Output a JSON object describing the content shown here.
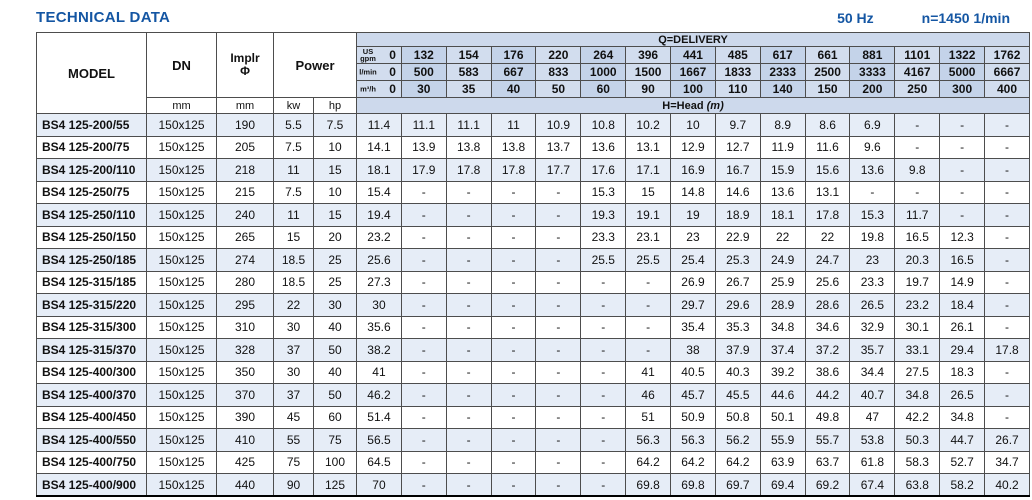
{
  "page": {
    "title": "TECHNICAL DATA",
    "frequency": "50 Hz",
    "speed": "n=1450 1/min"
  },
  "table": {
    "headers": {
      "model": "MODEL",
      "dn": "DN",
      "impeller_line1": "Implr",
      "impeller_line2": "Φ",
      "power": "Power",
      "dn_unit": "mm",
      "impeller_unit": "mm",
      "kw": "kw",
      "hp": "hp",
      "delivery_title": "Q=DELIVERY",
      "head_label": "H=Head",
      "head_unit": "(m)"
    },
    "delivery_units": [
      {
        "unit": "US gpm",
        "values": [
          "0",
          "132",
          "154",
          "176",
          "220",
          "264",
          "396",
          "441",
          "485",
          "617",
          "661",
          "881",
          "1101",
          "1322",
          "1762"
        ]
      },
      {
        "unit": "l/min",
        "values": [
          "0",
          "500",
          "583",
          "667",
          "833",
          "1000",
          "1500",
          "1667",
          "1833",
          "2333",
          "2500",
          "3333",
          "4167",
          "5000",
          "6667"
        ]
      },
      {
        "unit": "m³/h",
        "values": [
          "0",
          "30",
          "35",
          "40",
          "50",
          "60",
          "90",
          "100",
          "110",
          "140",
          "150",
          "200",
          "250",
          "300",
          "400"
        ]
      }
    ],
    "rows": [
      {
        "model": "BS4 125-200/55",
        "dn": "150x125",
        "impeller": "190",
        "kw": "5.5",
        "hp": "7.5",
        "head": [
          "11.4",
          "11.1",
          "11.1",
          "11",
          "10.9",
          "10.8",
          "10.2",
          "10",
          "9.7",
          "8.9",
          "8.6",
          "6.9",
          "-",
          "-",
          "-"
        ]
      },
      {
        "model": "BS4 125-200/75",
        "dn": "150x125",
        "impeller": "205",
        "kw": "7.5",
        "hp": "10",
        "head": [
          "14.1",
          "13.9",
          "13.8",
          "13.8",
          "13.7",
          "13.6",
          "13.1",
          "12.9",
          "12.7",
          "11.9",
          "11.6",
          "9.6",
          "-",
          "-",
          "-"
        ]
      },
      {
        "model": "BS4 125-200/110",
        "dn": "150x125",
        "impeller": "218",
        "kw": "11",
        "hp": "15",
        "head": [
          "18.1",
          "17.9",
          "17.8",
          "17.8",
          "17.7",
          "17.6",
          "17.1",
          "16.9",
          "16.7",
          "15.9",
          "15.6",
          "13.6",
          "9.8",
          "-",
          "-"
        ]
      },
      {
        "model": "BS4 125-250/75",
        "dn": "150x125",
        "impeller": "215",
        "kw": "7.5",
        "hp": "10",
        "head": [
          "15.4",
          "-",
          "-",
          "-",
          "-",
          "15.3",
          "15",
          "14.8",
          "14.6",
          "13.6",
          "13.1",
          "-",
          "-",
          "-",
          "-"
        ]
      },
      {
        "model": "BS4 125-250/110",
        "dn": "150x125",
        "impeller": "240",
        "kw": "11",
        "hp": "15",
        "head": [
          "19.4",
          "-",
          "-",
          "-",
          "-",
          "19.3",
          "19.1",
          "19",
          "18.9",
          "18.1",
          "17.8",
          "15.3",
          "11.7",
          "-",
          "-"
        ]
      },
      {
        "model": "BS4 125-250/150",
        "dn": "150x125",
        "impeller": "265",
        "kw": "15",
        "hp": "20",
        "head": [
          "23.2",
          "-",
          "-",
          "-",
          "-",
          "23.3",
          "23.1",
          "23",
          "22.9",
          "22",
          "22",
          "19.8",
          "16.5",
          "12.3",
          "-"
        ]
      },
      {
        "model": "BS4 125-250/185",
        "dn": "150x125",
        "impeller": "274",
        "kw": "18.5",
        "hp": "25",
        "head": [
          "25.6",
          "-",
          "-",
          "-",
          "-",
          "25.5",
          "25.5",
          "25.4",
          "25.3",
          "24.9",
          "24.7",
          "23",
          "20.3",
          "16.5",
          "-"
        ]
      },
      {
        "model": "BS4 125-315/185",
        "dn": "150x125",
        "impeller": "280",
        "kw": "18.5",
        "hp": "25",
        "head": [
          "27.3",
          "-",
          "-",
          "-",
          "-",
          "-",
          "-",
          "26.9",
          "26.7",
          "25.9",
          "25.6",
          "23.3",
          "19.7",
          "14.9",
          "-"
        ]
      },
      {
        "model": "BS4 125-315/220",
        "dn": "150x125",
        "impeller": "295",
        "kw": "22",
        "hp": "30",
        "head": [
          "30",
          "-",
          "-",
          "-",
          "-",
          "-",
          "-",
          "29.7",
          "29.6",
          "28.9",
          "28.6",
          "26.5",
          "23.2",
          "18.4",
          "-"
        ]
      },
      {
        "model": "BS4 125-315/300",
        "dn": "150x125",
        "impeller": "310",
        "kw": "30",
        "hp": "40",
        "head": [
          "35.6",
          "-",
          "-",
          "-",
          "-",
          "-",
          "-",
          "35.4",
          "35.3",
          "34.8",
          "34.6",
          "32.9",
          "30.1",
          "26.1",
          "-"
        ]
      },
      {
        "model": "BS4 125-315/370",
        "dn": "150x125",
        "impeller": "328",
        "kw": "37",
        "hp": "50",
        "head": [
          "38.2",
          "-",
          "-",
          "-",
          "-",
          "-",
          "-",
          "38",
          "37.9",
          "37.4",
          "37.2",
          "35.7",
          "33.1",
          "29.4",
          "17.8"
        ]
      },
      {
        "model": "BS4 125-400/300",
        "dn": "150x125",
        "impeller": "350",
        "kw": "30",
        "hp": "40",
        "head": [
          "41",
          "-",
          "-",
          "-",
          "-",
          "-",
          "41",
          "40.5",
          "40.3",
          "39.2",
          "38.6",
          "34.4",
          "27.5",
          "18.3",
          "-"
        ]
      },
      {
        "model": "BS4 125-400/370",
        "dn": "150x125",
        "impeller": "370",
        "kw": "37",
        "hp": "50",
        "head": [
          "46.2",
          "-",
          "-",
          "-",
          "-",
          "-",
          "46",
          "45.7",
          "45.5",
          "44.6",
          "44.2",
          "40.7",
          "34.8",
          "26.5",
          "-"
        ]
      },
      {
        "model": "BS4 125-400/450",
        "dn": "150x125",
        "impeller": "390",
        "kw": "45",
        "hp": "60",
        "head": [
          "51.4",
          "-",
          "-",
          "-",
          "-",
          "-",
          "51",
          "50.9",
          "50.8",
          "50.1",
          "49.8",
          "47",
          "42.2",
          "34.8",
          "-"
        ]
      },
      {
        "model": "BS4 125-400/550",
        "dn": "150x125",
        "impeller": "410",
        "kw": "55",
        "hp": "75",
        "head": [
          "56.5",
          "-",
          "-",
          "-",
          "-",
          "-",
          "56.3",
          "56.3",
          "56.2",
          "55.9",
          "55.7",
          "53.8",
          "50.3",
          "44.7",
          "26.7"
        ]
      },
      {
        "model": "BS4 125-400/750",
        "dn": "150x125",
        "impeller": "425",
        "kw": "75",
        "hp": "100",
        "head": [
          "64.5",
          "-",
          "-",
          "-",
          "-",
          "-",
          "64.2",
          "64.2",
          "64.2",
          "63.9",
          "63.7",
          "61.8",
          "58.3",
          "52.7",
          "34.7"
        ]
      },
      {
        "model": "BS4 125-400/900",
        "dn": "150x125",
        "impeller": "440",
        "kw": "90",
        "hp": "125",
        "head": [
          "70",
          "-",
          "-",
          "-",
          "-",
          "-",
          "69.8",
          "69.8",
          "69.7",
          "69.4",
          "69.2",
          "67.4",
          "63.8",
          "58.2",
          "40.2"
        ]
      }
    ]
  }
}
